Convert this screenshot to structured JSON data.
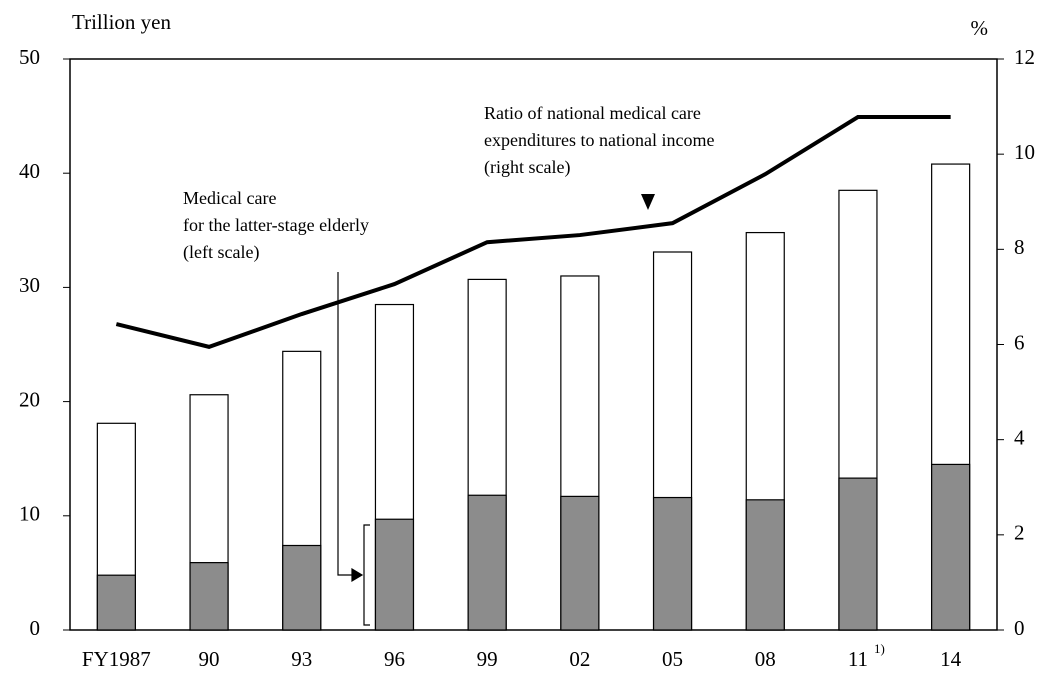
{
  "chart_data": {
    "type": "bar",
    "y_label": "Trillion yen",
    "y2_label": "%",
    "categories": [
      "FY1987",
      "90",
      "93",
      "96",
      "99",
      "02",
      "05",
      "08",
      "11",
      "14"
    ],
    "category_notes": [
      null,
      null,
      null,
      null,
      null,
      null,
      null,
      null,
      "1)",
      null
    ],
    "ylim": [
      0,
      50
    ],
    "yticks": [
      0,
      10,
      20,
      30,
      40,
      50
    ],
    "y2lim": [
      0,
      12
    ],
    "y2ticks": [
      0,
      2,
      4,
      6,
      8,
      10,
      12
    ],
    "series": [
      {
        "color": "#ffffff",
        "values": [
          18.1,
          20.6,
          24.4,
          28.5,
          30.7,
          31.0,
          33.1,
          34.8,
          38.5,
          40.8
        ]
      },
      {
        "name": [
          "Medical care",
          "for the latter-stage elderly",
          "(left scale)"
        ],
        "color": "#8c8c8c",
        "values": [
          4.8,
          5.9,
          7.4,
          9.7,
          11.8,
          11.7,
          11.6,
          11.4,
          13.3,
          14.5
        ]
      },
      {
        "name": [
          "Ratio of  national medical care",
          "expenditures to national income",
          "(right scale)"
        ],
        "type": "line",
        "axis": "y2",
        "color": "#000000",
        "values": [
          6.43,
          5.95,
          6.64,
          7.27,
          8.15,
          8.3,
          8.55,
          9.58,
          10.78,
          10.78
        ]
      }
    ]
  }
}
